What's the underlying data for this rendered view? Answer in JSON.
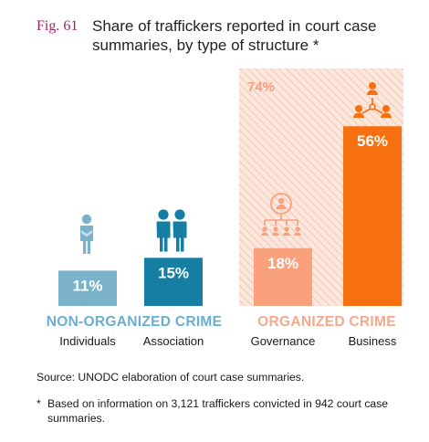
{
  "figure": {
    "label": "Fig. 61",
    "title": "Share of traffickers reported in court case summaries, by type of structure *"
  },
  "chart_data": {
    "type": "bar",
    "groups": [
      {
        "name": "NON-ORGANIZED CRIME",
        "color": "#6aaed0",
        "categories": [
          "Individuals",
          "Association"
        ]
      },
      {
        "name": "ORGANIZED CRIME",
        "color": "#f5a98a",
        "categories": [
          "Governance",
          "Business"
        ],
        "total_label": "74%",
        "total": 74
      }
    ],
    "categories": [
      "Individuals",
      "Association",
      "Governance",
      "Business"
    ],
    "values": [
      11,
      15,
      18,
      56
    ],
    "value_labels": [
      "11%",
      "15%",
      "18%",
      "56%"
    ],
    "colors": [
      "#7ab3c9",
      "#167ea3",
      "#f9a07c",
      "#f7700f"
    ],
    "icons": [
      "person-icon",
      "two-persons-icon",
      "hierarchy-icon",
      "network-icon"
    ],
    "ylim": [
      0,
      74
    ]
  },
  "footer": {
    "source": "Source: UNODC elaboration of court case summaries.",
    "note_mark": "*",
    "note": "Based on information on 3,121 traffickers convicted in 942 court case summaries."
  }
}
